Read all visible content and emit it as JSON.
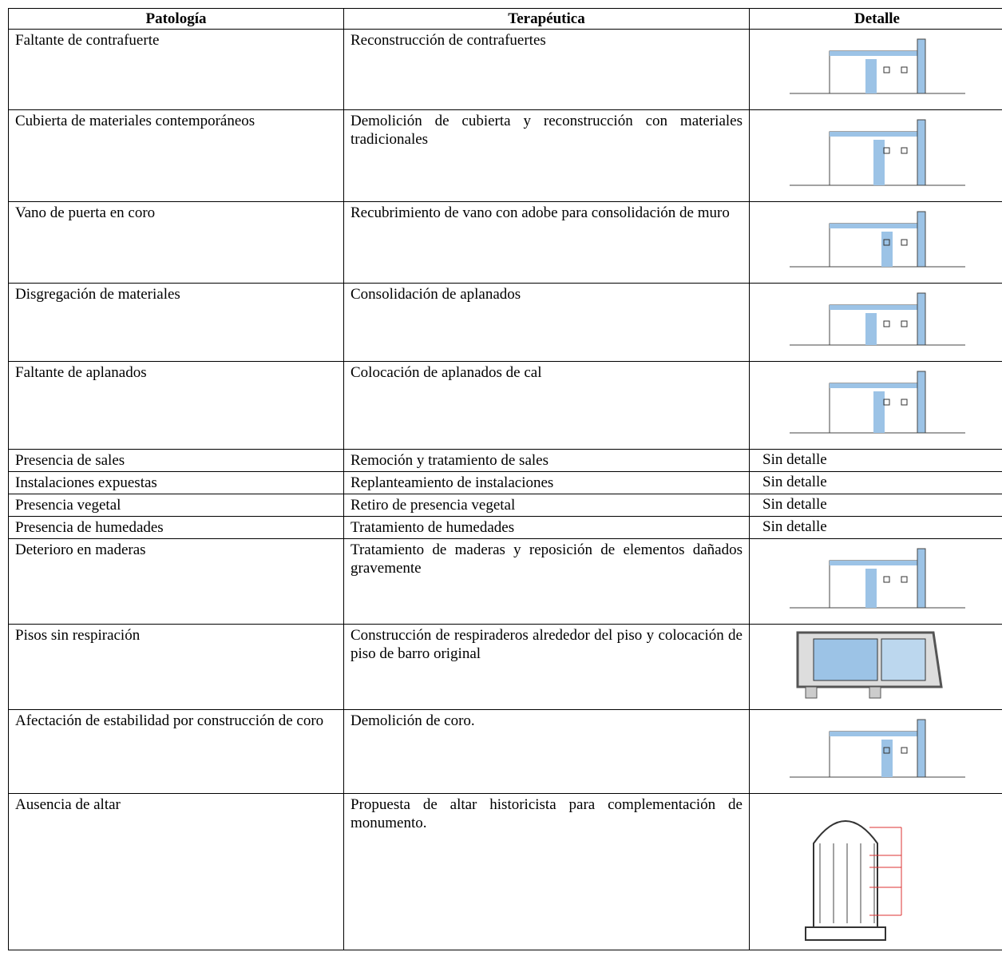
{
  "table": {
    "header": [
      "Patología",
      "Terapéutica",
      "Detalle"
    ],
    "rows": [
      [
        "Faltante de contrafuerte",
        "Reconstrucción de contrafuertes"
      ],
      [
        "Cubierta de materiales contemporáneos",
        "Demolición de cubierta y reconstrucción con materiales tradicionales"
      ],
      [
        "Vano de puerta en coro",
        "Recubrimiento de vano con adobe para consolidación de muro"
      ],
      [
        "Disgregación de materiales",
        "Consolidación de aplanados"
      ],
      [
        "Faltante de aplanados",
        "Colocación de aplanados de cal"
      ],
      [
        "Presencia de sales",
        "Remoción y tratamiento de sales",
        "Sin detalle"
      ],
      [
        "Instalaciones expuestas",
        "Replanteamiento de instalaciones",
        "Sin detalle"
      ],
      [
        "Presencia vegetal",
        "Retiro de presencia vegetal",
        "Sin detalle"
      ],
      [
        "Presencia de humedades",
        "Tratamiento de humedades",
        "Sin detalle"
      ],
      [
        "Deterioro en maderas",
        "Tratamiento de maderas y reposición de elementos dañados gravemente"
      ],
      [
        "Pisos sin respiración",
        "Construcción de respiraderos alrededor del piso y colocación de piso de barro original"
      ],
      [
        "Afectación de estabilidad por construcción de coro",
        "Demolición de coro."
      ],
      [
        "Ausencia de altar",
        "Propuesta de altar historicista para complementación de monumento."
      ]
    ]
  }
}
